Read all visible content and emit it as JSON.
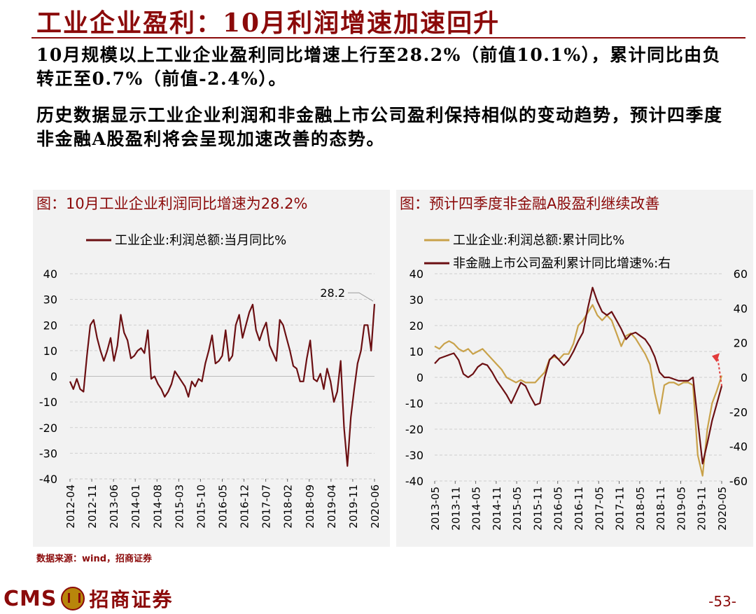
{
  "slide": {
    "title": "工业企业盈利：10月利润增速加速回升",
    "para1": "10月规模以上工业企业盈利同比增速上行至28.2%（前值10.1%），累计同比由负转正至0.7%（前值-2.4%）。",
    "para2": "历史数据显示工业企业利润和非金融上市公司盈利保持相似的变动趋势，预计四季度非金融A股盈利将会呈现加速改善的态势。",
    "source": "数据来源：wind，招商证券",
    "logo_text": "CMS",
    "logo_cn": "招商证券",
    "page_number": "-53-"
  },
  "colors": {
    "brand": "#8b0a0a",
    "series_dark": "#6b0f12",
    "series_gold": "#c9a24a",
    "panel_bg": "#f2f2f2"
  },
  "chart_data": [
    {
      "type": "line",
      "title": "图：10月工业企业利润同比增速为28.2%",
      "ylim": [
        -40,
        40
      ],
      "yticks": [
        40,
        30,
        20,
        10,
        0,
        -10,
        -20,
        -30,
        -40
      ],
      "xtick_labels": [
        "2012-04",
        "2012-11",
        "2013-06",
        "2014-01",
        "2014-08",
        "2015-03",
        "2015-10",
        "2016-05",
        "2016-12",
        "2017-07",
        "2018-02",
        "2018-09",
        "2019-04",
        "2019-11",
        "2020-06"
      ],
      "annotation": "28.2",
      "grid": true,
      "legend_position": "top",
      "series": [
        {
          "name": "工业企业:利润总额:当月同比%",
          "x_start": "2012-04",
          "values": [
            -2,
            -5,
            -1,
            -5,
            -6,
            8,
            20,
            22,
            15,
            10,
            6,
            10,
            15,
            6,
            12,
            24,
            17,
            14,
            7,
            8,
            10,
            11,
            9,
            18,
            -1,
            0,
            -3,
            -5,
            -8,
            -6,
            -3,
            2,
            0,
            -2,
            -4,
            -8,
            -2,
            -4,
            -1,
            -2,
            5,
            10,
            16,
            5,
            6,
            8,
            18,
            6,
            8,
            20,
            24,
            15,
            20,
            25,
            28,
            18,
            14,
            18,
            21,
            12,
            9,
            6,
            22,
            20,
            15,
            10,
            4,
            3,
            -2,
            -2,
            7,
            14,
            -1,
            -2,
            1,
            -5,
            3,
            -2,
            -10,
            -6,
            6,
            -20,
            -35,
            -16,
            -5,
            5,
            10,
            20,
            20,
            10,
            28.2
          ]
        }
      ]
    },
    {
      "type": "line",
      "title": "图：预计四季度非金融A股盈利继续改善",
      "ylim": [
        -40,
        40
      ],
      "yticks": [
        40,
        30,
        20,
        10,
        0,
        -10,
        -20,
        -30,
        -40
      ],
      "y2lim": [
        -60,
        60
      ],
      "y2ticks": [
        60,
        40,
        20,
        0,
        -20,
        -40,
        -60
      ],
      "xtick_labels": [
        "2013-05",
        "2013-11",
        "2014-05",
        "2014-11",
        "2015-05",
        "2015-11",
        "2016-05",
        "2016-11",
        "2017-05",
        "2017-11",
        "2018-05",
        "2018-11",
        "2019-05",
        "2019-11",
        "2020-05"
      ],
      "grid": true,
      "legend_position": "top",
      "series": [
        {
          "name": "工业企业:利润总额:累计同比%",
          "axis": "left",
          "x_start": "2013-05",
          "values": [
            12,
            11,
            13,
            14,
            13,
            11,
            10,
            11,
            9,
            10,
            11,
            9,
            7,
            5,
            3,
            0,
            -1,
            -2,
            -1,
            -2,
            -2,
            -2,
            0,
            2,
            7,
            8,
            7,
            9,
            9,
            13,
            20,
            22,
            25,
            28,
            24,
            22,
            24,
            22,
            17,
            12,
            16,
            17,
            15,
            12,
            9,
            5,
            -6,
            -14,
            -3,
            -2,
            -2,
            -3,
            -2,
            -2,
            -3,
            -30,
            -38,
            -20,
            -10,
            -5,
            0.7
          ]
        },
        {
          "name": "非金融上市公司盈利累计同比增速%:右",
          "axis": "right",
          "x_start": "2013-05",
          "values": [
            8,
            11,
            12,
            13,
            14,
            10,
            2,
            0,
            2,
            6,
            8,
            7,
            3,
            -2,
            -6,
            -10,
            -15,
            -9,
            -3,
            -5,
            -11,
            -16,
            -15,
            0,
            10,
            13,
            10,
            7,
            10,
            15,
            21,
            26,
            40,
            52,
            44,
            38,
            36,
            38,
            33,
            28,
            22,
            25,
            26,
            24,
            22,
            18,
            12,
            3,
            0,
            0,
            -1,
            -2,
            -2,
            -2,
            0,
            -25,
            -50,
            -38,
            -25,
            -15,
            -5
          ],
          "projection": [
            -5,
            12
          ]
        }
      ]
    }
  ]
}
